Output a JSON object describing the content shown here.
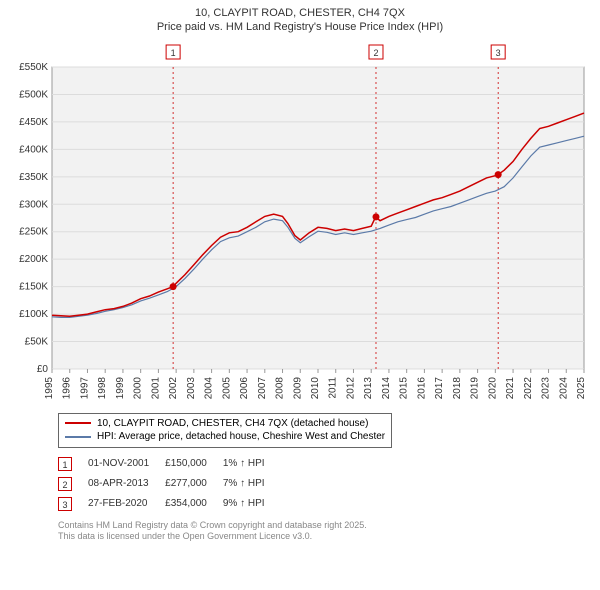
{
  "title": {
    "line1": "10, CLAYPIT ROAD, CHESTER, CH4 7QX",
    "line2": "Price paid vs. HM Land Registry's House Price Index (HPI)"
  },
  "chart": {
    "type": "line",
    "background_color": "#ffffff",
    "plot_background": "#f2f2f2",
    "plot_border_color": "#999999",
    "grid_color": "#dcdcdc",
    "ylim": [
      0,
      550000
    ],
    "ytick_step": 50000,
    "ytick_labels": [
      "£0",
      "£50K",
      "£100K",
      "£150K",
      "£200K",
      "£250K",
      "£300K",
      "£350K",
      "£400K",
      "£450K",
      "£500K",
      "£550K"
    ],
    "xlim": [
      1995,
      2025
    ],
    "xtick_step": 1,
    "xtick_labels": [
      "1995",
      "1996",
      "1997",
      "1998",
      "1999",
      "2000",
      "2001",
      "2002",
      "2003",
      "2004",
      "2005",
      "2006",
      "2007",
      "2008",
      "2009",
      "2010",
      "2011",
      "2012",
      "2013",
      "2014",
      "2015",
      "2016",
      "2017",
      "2018",
      "2019",
      "2020",
      "2021",
      "2022",
      "2023",
      "2024",
      "2025"
    ],
    "series": [
      {
        "name": "price_paid",
        "label": "10, CLAYPIT ROAD, CHESTER, CH4 7QX (detached house)",
        "color": "#cc0000",
        "line_width": 1.5,
        "data": [
          [
            1995,
            98000
          ],
          [
            1995.5,
            97000
          ],
          [
            1996,
            96000
          ],
          [
            1996.5,
            98000
          ],
          [
            1997,
            100000
          ],
          [
            1997.5,
            104000
          ],
          [
            1998,
            108000
          ],
          [
            1998.5,
            110000
          ],
          [
            1999,
            114000
          ],
          [
            1999.5,
            120000
          ],
          [
            2000,
            128000
          ],
          [
            2000.5,
            133000
          ],
          [
            2001,
            140000
          ],
          [
            2001.5,
            146000
          ],
          [
            2001.83,
            150000
          ],
          [
            2002,
            156000
          ],
          [
            2002.5,
            172000
          ],
          [
            2003,
            190000
          ],
          [
            2003.5,
            208000
          ],
          [
            2004,
            225000
          ],
          [
            2004.5,
            240000
          ],
          [
            2005,
            248000
          ],
          [
            2005.5,
            250000
          ],
          [
            2006,
            258000
          ],
          [
            2006.5,
            268000
          ],
          [
            2007,
            278000
          ],
          [
            2007.5,
            282000
          ],
          [
            2008,
            278000
          ],
          [
            2008.3,
            265000
          ],
          [
            2008.7,
            243000
          ],
          [
            2009,
            235000
          ],
          [
            2009.5,
            248000
          ],
          [
            2010,
            258000
          ],
          [
            2010.5,
            256000
          ],
          [
            2011,
            252000
          ],
          [
            2011.5,
            255000
          ],
          [
            2012,
            252000
          ],
          [
            2012.5,
            256000
          ],
          [
            2013,
            260000
          ],
          [
            2013.25,
            277000
          ],
          [
            2013.5,
            270000
          ],
          [
            2014,
            278000
          ],
          [
            2014.5,
            284000
          ],
          [
            2015,
            290000
          ],
          [
            2015.5,
            296000
          ],
          [
            2016,
            302000
          ],
          [
            2016.5,
            308000
          ],
          [
            2017,
            312000
          ],
          [
            2017.5,
            318000
          ],
          [
            2018,
            324000
          ],
          [
            2018.5,
            332000
          ],
          [
            2019,
            340000
          ],
          [
            2019.5,
            348000
          ],
          [
            2020,
            352000
          ],
          [
            2020.15,
            354000
          ],
          [
            2020.5,
            362000
          ],
          [
            2021,
            378000
          ],
          [
            2021.5,
            400000
          ],
          [
            2022,
            420000
          ],
          [
            2022.5,
            438000
          ],
          [
            2023,
            442000
          ],
          [
            2023.5,
            448000
          ],
          [
            2024,
            454000
          ],
          [
            2024.5,
            460000
          ],
          [
            2025,
            466000
          ]
        ]
      },
      {
        "name": "hpi",
        "label": "HPI: Average price, detached house, Cheshire West and Chester",
        "color": "#5b7aa8",
        "line_width": 1.2,
        "data": [
          [
            1995,
            95000
          ],
          [
            1995.5,
            94000
          ],
          [
            1996,
            94000
          ],
          [
            1996.5,
            96000
          ],
          [
            1997,
            98000
          ],
          [
            1997.5,
            101000
          ],
          [
            1998,
            105000
          ],
          [
            1998.5,
            108000
          ],
          [
            1999,
            112000
          ],
          [
            1999.5,
            117000
          ],
          [
            2000,
            124000
          ],
          [
            2000.5,
            129000
          ],
          [
            2001,
            135000
          ],
          [
            2001.5,
            141000
          ],
          [
            2002,
            150000
          ],
          [
            2002.5,
            165000
          ],
          [
            2003,
            182000
          ],
          [
            2003.5,
            200000
          ],
          [
            2004,
            217000
          ],
          [
            2004.5,
            232000
          ],
          [
            2005,
            239000
          ],
          [
            2005.5,
            242000
          ],
          [
            2006,
            250000
          ],
          [
            2006.5,
            258000
          ],
          [
            2007,
            268000
          ],
          [
            2007.5,
            273000
          ],
          [
            2008,
            270000
          ],
          [
            2008.3,
            258000
          ],
          [
            2008.7,
            238000
          ],
          [
            2009,
            230000
          ],
          [
            2009.5,
            241000
          ],
          [
            2010,
            251000
          ],
          [
            2010.5,
            249000
          ],
          [
            2011,
            245000
          ],
          [
            2011.5,
            248000
          ],
          [
            2012,
            245000
          ],
          [
            2012.5,
            248000
          ],
          [
            2013,
            251000
          ],
          [
            2013.5,
            256000
          ],
          [
            2014,
            262000
          ],
          [
            2014.5,
            268000
          ],
          [
            2015,
            272000
          ],
          [
            2015.5,
            276000
          ],
          [
            2016,
            282000
          ],
          [
            2016.5,
            288000
          ],
          [
            2017,
            292000
          ],
          [
            2017.5,
            296000
          ],
          [
            2018,
            302000
          ],
          [
            2018.5,
            308000
          ],
          [
            2019,
            314000
          ],
          [
            2019.5,
            320000
          ],
          [
            2020,
            324000
          ],
          [
            2020.5,
            332000
          ],
          [
            2021,
            348000
          ],
          [
            2021.5,
            368000
          ],
          [
            2022,
            388000
          ],
          [
            2022.5,
            404000
          ],
          [
            2023,
            408000
          ],
          [
            2023.5,
            412000
          ],
          [
            2024,
            416000
          ],
          [
            2024.5,
            420000
          ],
          [
            2025,
            424000
          ]
        ]
      }
    ],
    "sale_markers": [
      {
        "num": "1",
        "x": 2001.83,
        "y": 150000,
        "dash_color": "#cc0000"
      },
      {
        "num": "2",
        "x": 2013.27,
        "y": 277000,
        "dash_color": "#cc0000"
      },
      {
        "num": "3",
        "x": 2020.16,
        "y": 354000,
        "dash_color": "#cc0000"
      }
    ]
  },
  "legend": {
    "rows": [
      {
        "color": "#cc0000",
        "label": "10, CLAYPIT ROAD, CHESTER, CH4 7QX (detached house)"
      },
      {
        "color": "#5b7aa8",
        "label": "HPI: Average price, detached house, Cheshire West and Chester"
      }
    ]
  },
  "sales_table": {
    "rows": [
      {
        "num": "1",
        "date": "01-NOV-2001",
        "price": "£150,000",
        "delta": "1% ↑ HPI"
      },
      {
        "num": "2",
        "date": "08-APR-2013",
        "price": "£277,000",
        "delta": "7% ↑ HPI"
      },
      {
        "num": "3",
        "date": "27-FEB-2020",
        "price": "£354,000",
        "delta": "9% ↑ HPI"
      }
    ]
  },
  "attribution": {
    "line1": "Contains HM Land Registry data © Crown copyright and database right 2025.",
    "line2": "This data is licensed under the Open Government Licence v3.0."
  }
}
